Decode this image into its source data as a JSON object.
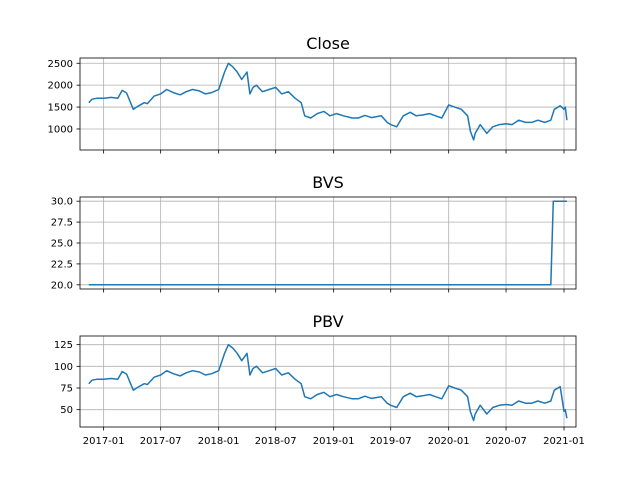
{
  "chart_data": [
    {
      "type": "line",
      "title": "Close",
      "xlabel": "",
      "ylabel": "",
      "ylim": [
        520,
        2620
      ],
      "yticks": [
        {
          "value": 1000,
          "label": "1000"
        },
        {
          "value": 1500,
          "label": "1500"
        },
        {
          "value": 2000,
          "label": "2000"
        },
        {
          "value": 2500,
          "label": "2500"
        }
      ],
      "show_xticklabels": false,
      "grid": true,
      "series": [
        {
          "color": "#1f77b4",
          "x": [
            "2016-11-15",
            "2016-11-25",
            "2016-12-10",
            "2017-01-01",
            "2017-01-25",
            "2017-02-15",
            "2017-03-01",
            "2017-03-15",
            "2017-04-05",
            "2017-04-20",
            "2017-05-10",
            "2017-05-20",
            "2017-06-10",
            "2017-07-01",
            "2017-07-20",
            "2017-08-10",
            "2017-09-01",
            "2017-09-20",
            "2017-10-10",
            "2017-11-01",
            "2017-11-20",
            "2017-12-10",
            "2018-01-01",
            "2018-01-20",
            "2018-02-01",
            "2018-02-15",
            "2018-03-01",
            "2018-03-15",
            "2018-04-01",
            "2018-04-10",
            "2018-04-20",
            "2018-05-01",
            "2018-05-20",
            "2018-06-10",
            "2018-07-01",
            "2018-07-20",
            "2018-08-10",
            "2018-09-01",
            "2018-09-20",
            "2018-10-01",
            "2018-10-20",
            "2018-11-10",
            "2018-12-01",
            "2018-12-20",
            "2019-01-10",
            "2019-02-01",
            "2019-03-01",
            "2019-03-20",
            "2019-04-10",
            "2019-05-01",
            "2019-06-01",
            "2019-06-20",
            "2019-07-01",
            "2019-07-20",
            "2019-08-10",
            "2019-09-01",
            "2019-09-20",
            "2019-10-10",
            "2019-11-01",
            "2019-11-20",
            "2019-12-10",
            "2020-01-01",
            "2020-01-20",
            "2020-02-10",
            "2020-03-01",
            "2020-03-10",
            "2020-03-20",
            "2020-03-25",
            "2020-04-10",
            "2020-05-01",
            "2020-05-20",
            "2020-06-10",
            "2020-07-01",
            "2020-07-20",
            "2020-08-10",
            "2020-09-01",
            "2020-09-20",
            "2020-10-10",
            "2020-11-01",
            "2020-11-20",
            "2020-12-01",
            "2020-12-20",
            "2021-01-01",
            "2021-01-05",
            "2021-01-10"
          ],
          "values": [
            1600,
            1680,
            1700,
            1700,
            1720,
            1700,
            1880,
            1820,
            1450,
            1520,
            1600,
            1580,
            1750,
            1800,
            1900,
            1830,
            1780,
            1850,
            1900,
            1870,
            1800,
            1830,
            1900,
            2300,
            2500,
            2420,
            2300,
            2130,
            2300,
            1800,
            1950,
            2000,
            1850,
            1900,
            1950,
            1800,
            1850,
            1700,
            1600,
            1300,
            1250,
            1350,
            1400,
            1300,
            1350,
            1300,
            1250,
            1250,
            1310,
            1260,
            1300,
            1150,
            1100,
            1050,
            1300,
            1380,
            1300,
            1320,
            1350,
            1300,
            1250,
            1550,
            1500,
            1450,
            1300,
            950,
            750,
            900,
            1100,
            900,
            1050,
            1100,
            1120,
            1100,
            1200,
            1150,
            1150,
            1200,
            1150,
            1200,
            1450,
            1530,
            1450,
            1500,
            1200
          ]
        }
      ]
    },
    {
      "type": "line",
      "title": "BVS",
      "xlabel": "",
      "ylabel": "",
      "ylim": [
        19.5,
        30.5
      ],
      "yticks": [
        {
          "value": 20.0,
          "label": "20.0"
        },
        {
          "value": 22.5,
          "label": "22.5"
        },
        {
          "value": 25.0,
          "label": "25.0"
        },
        {
          "value": 27.5,
          "label": "27.5"
        },
        {
          "value": 30.0,
          "label": "30.0"
        }
      ],
      "show_xticklabels": false,
      "grid": true,
      "series": [
        {
          "color": "#1f77b4",
          "x": [
            "2016-11-15",
            "2020-11-20",
            "2020-11-28",
            "2021-01-10"
          ],
          "values": [
            20.0,
            20.0,
            30.0,
            30.0
          ]
        }
      ]
    },
    {
      "type": "line",
      "title": "PBV",
      "xlabel": "",
      "ylabel": "",
      "ylim": [
        30,
        135
      ],
      "yticks": [
        {
          "value": 50,
          "label": "50"
        },
        {
          "value": 75,
          "label": "75"
        },
        {
          "value": 100,
          "label": "100"
        },
        {
          "value": 125,
          "label": "125"
        }
      ],
      "show_xticklabels": true,
      "grid": true,
      "series": [
        {
          "color": "#1f77b4",
          "x": [
            "2016-11-15",
            "2016-11-25",
            "2016-12-10",
            "2017-01-01",
            "2017-01-25",
            "2017-02-15",
            "2017-03-01",
            "2017-03-15",
            "2017-04-05",
            "2017-04-20",
            "2017-05-10",
            "2017-05-20",
            "2017-06-10",
            "2017-07-01",
            "2017-07-20",
            "2017-08-10",
            "2017-09-01",
            "2017-09-20",
            "2017-10-10",
            "2017-11-01",
            "2017-11-20",
            "2017-12-10",
            "2018-01-01",
            "2018-01-20",
            "2018-02-01",
            "2018-02-15",
            "2018-03-01",
            "2018-03-15",
            "2018-04-01",
            "2018-04-10",
            "2018-04-20",
            "2018-05-01",
            "2018-05-20",
            "2018-06-10",
            "2018-07-01",
            "2018-07-20",
            "2018-08-10",
            "2018-09-01",
            "2018-09-20",
            "2018-10-01",
            "2018-10-20",
            "2018-11-10",
            "2018-12-01",
            "2018-12-20",
            "2019-01-10",
            "2019-02-01",
            "2019-03-01",
            "2019-03-20",
            "2019-04-10",
            "2019-05-01",
            "2019-06-01",
            "2019-06-20",
            "2019-07-01",
            "2019-07-20",
            "2019-08-10",
            "2019-09-01",
            "2019-09-20",
            "2019-10-10",
            "2019-11-01",
            "2019-11-20",
            "2019-12-10",
            "2020-01-01",
            "2020-01-20",
            "2020-02-10",
            "2020-03-01",
            "2020-03-10",
            "2020-03-20",
            "2020-03-25",
            "2020-04-10",
            "2020-05-01",
            "2020-05-20",
            "2020-06-10",
            "2020-07-01",
            "2020-07-20",
            "2020-08-10",
            "2020-09-01",
            "2020-09-20",
            "2020-10-10",
            "2020-11-01",
            "2020-11-20",
            "2020-12-01",
            "2020-12-20",
            "2021-01-01",
            "2021-01-05",
            "2021-01-10"
          ],
          "values": [
            80,
            84,
            85,
            85,
            86,
            85,
            94,
            91,
            72.5,
            76,
            80,
            79,
            87.5,
            90,
            95,
            91.5,
            89,
            92.5,
            95,
            93.5,
            90,
            91.5,
            95,
            115,
            125,
            121,
            115,
            106.5,
            115,
            90,
            97.5,
            100,
            92.5,
            95,
            97.5,
            90,
            92.5,
            85,
            80,
            65,
            62.5,
            67.5,
            70,
            65,
            67.5,
            65,
            62.5,
            62.5,
            65.5,
            63,
            65,
            57.5,
            55,
            52.5,
            65,
            69,
            65,
            66,
            67.5,
            65,
            62.5,
            77.5,
            75,
            72.5,
            65,
            47.5,
            37.5,
            45,
            55,
            45,
            52.5,
            55,
            56,
            55,
            60,
            57.5,
            57.5,
            60,
            57.5,
            60,
            72.5,
            76.5,
            48,
            50,
            40
          ]
        }
      ]
    }
  ],
  "xaxis": {
    "xlim": [
      "2016-10-18",
      "2021-02-08"
    ],
    "ticks": [
      {
        "date": "2017-01-01",
        "label": "2017-01"
      },
      {
        "date": "2017-07-01",
        "label": "2017-07"
      },
      {
        "date": "2018-01-01",
        "label": "2018-01"
      },
      {
        "date": "2018-07-01",
        "label": "2018-07"
      },
      {
        "date": "2019-01-01",
        "label": "2019-01"
      },
      {
        "date": "2019-07-01",
        "label": "2019-07"
      },
      {
        "date": "2020-01-01",
        "label": "2020-01"
      },
      {
        "date": "2020-07-01",
        "label": "2020-07"
      },
      {
        "date": "2021-01-01",
        "label": "2021-01"
      }
    ]
  }
}
